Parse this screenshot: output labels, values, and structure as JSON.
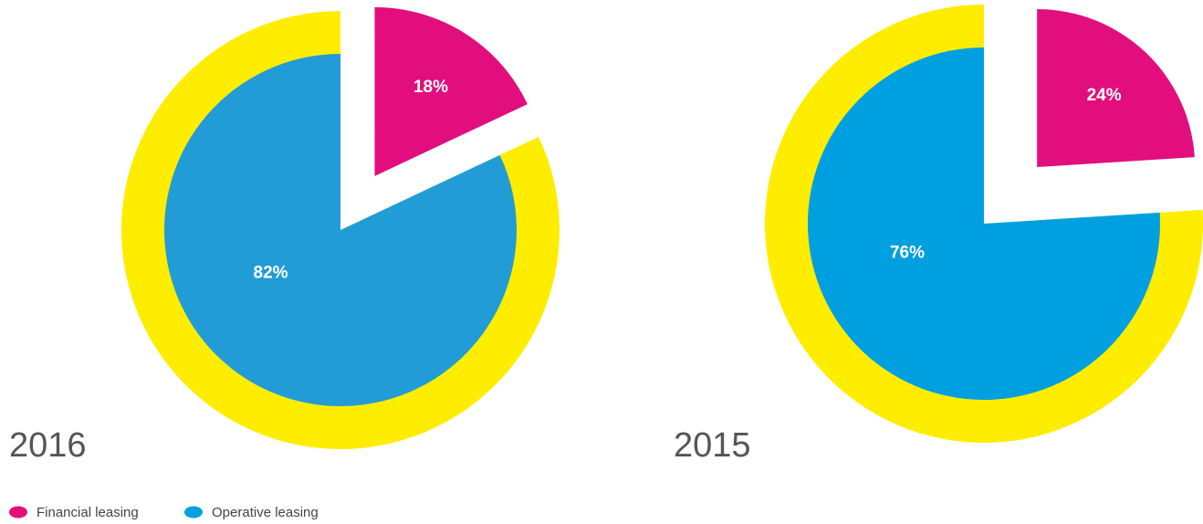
{
  "chart_data": [
    {
      "type": "pie",
      "title": "2016",
      "values": [
        18,
        82
      ],
      "value_labels": [
        "18%",
        "82%"
      ],
      "colors": [
        "#e20e7d",
        "#229cd6"
      ],
      "explode": [
        true,
        false
      ],
      "ring_color": "#ffed00"
    },
    {
      "type": "pie",
      "title": "2015",
      "values": [
        24,
        76
      ],
      "value_labels": [
        "24%",
        "76%"
      ],
      "colors": [
        "#e20e7d",
        "#00a0e0"
      ],
      "explode": [
        true,
        false
      ],
      "ring_color": "#ffed00"
    }
  ],
  "legend": [
    {
      "name": "Financial leasing",
      "color": "#e20e7d"
    },
    {
      "name": "Operative leasing",
      "color": "#00a0e0"
    }
  ]
}
